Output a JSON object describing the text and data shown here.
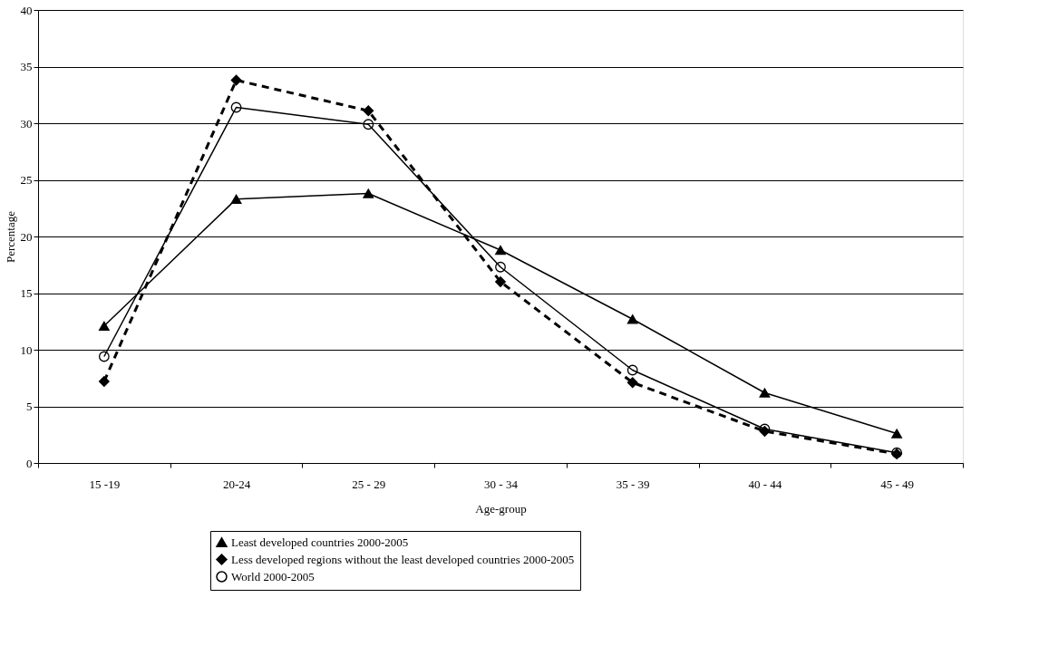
{
  "chart_data": {
    "type": "line",
    "xlabel": "Age-group",
    "ylabel": "Percentage",
    "categories": [
      "15 -19",
      "20-24",
      "25 - 29",
      "30 - 34",
      "35 - 39",
      "40 - 44",
      "45 - 49"
    ],
    "ylim": [
      0,
      40
    ],
    "yticks": [
      0,
      5,
      10,
      15,
      20,
      25,
      30,
      35,
      40
    ],
    "grid": "y",
    "legend": "bottom",
    "series": [
      {
        "name": "Least developed countries 2000-2005",
        "color": "#000000",
        "marker": "triangle",
        "line_style": "solid",
        "values": [
          12.1,
          23.3,
          23.8,
          18.8,
          12.7,
          6.2,
          2.6
        ]
      },
      {
        "name": "Less developed regions without the least developed countries 2000-2005",
        "color": "#000000",
        "marker": "diamond",
        "line_style": "dashed",
        "values": [
          7.2,
          33.8,
          31.1,
          16.0,
          7.1,
          2.8,
          0.8
        ]
      },
      {
        "name": "World 2000-2005",
        "color": "#000000",
        "marker": "circle",
        "line_style": "solid",
        "values": [
          9.4,
          31.4,
          29.9,
          17.3,
          8.2,
          3.0,
          0.9
        ]
      }
    ]
  }
}
